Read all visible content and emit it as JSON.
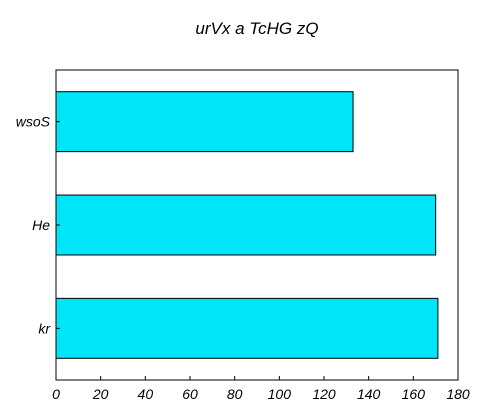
{
  "chart_data": {
    "type": "bar",
    "orientation": "horizontal",
    "title": "urVx a TcHG zQ",
    "xlabel": "",
    "ylabel": "",
    "categories": [
      "kr",
      "He",
      "wsoS"
    ],
    "values": [
      171,
      170,
      133
    ],
    "xlim": [
      0,
      180
    ],
    "xticks": [
      0,
      20,
      40,
      60,
      80,
      100,
      120,
      140,
      160,
      180
    ],
    "grid": false,
    "bar_color": "#00e5f8",
    "bar_edge_color": "#000000"
  }
}
